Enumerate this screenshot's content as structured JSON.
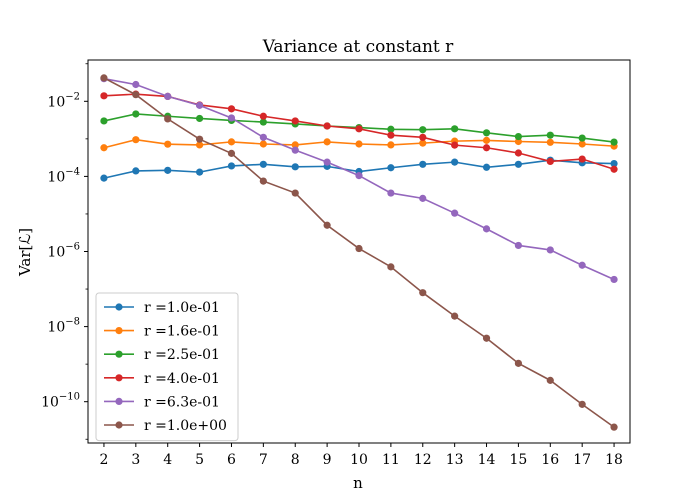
{
  "chart_data": {
    "type": "line",
    "title": "Variance at constant r",
    "xlabel": "n",
    "ylabel": "Var[ℒ]",
    "yscale": "log",
    "x": [
      2,
      3,
      4,
      5,
      6,
      7,
      8,
      9,
      10,
      11,
      12,
      13,
      14,
      15,
      16,
      17,
      18
    ],
    "xlim": [
      1.5,
      18.5
    ],
    "ylim_exp": [
      -11.1,
      -0.9
    ],
    "yticks": [
      {
        "exp": -2,
        "base": "10",
        "power": "−2"
      },
      {
        "exp": -4,
        "base": "10",
        "power": "−4"
      },
      {
        "exp": -6,
        "base": "10",
        "power": "−6"
      },
      {
        "exp": -8,
        "base": "10",
        "power": "−8"
      },
      {
        "exp": -10,
        "base": "10",
        "power": "−10"
      }
    ],
    "grid": false,
    "legend": {
      "position": "lower-left"
    },
    "series": [
      {
        "name": "r =1.0e-01",
        "color": "#1f77b4",
        "values": [
          9e-05,
          0.00014,
          0.000145,
          0.00013,
          0.00019,
          0.00021,
          0.00018,
          0.000185,
          0.000135,
          0.00017,
          0.00021,
          0.00024,
          0.000175,
          0.00021,
          0.00027,
          0.00023,
          0.00022
        ]
      },
      {
        "name": "r =1.6e-01",
        "color": "#ff7f0e",
        "values": [
          0.00058,
          0.00095,
          0.00072,
          0.00069,
          0.00083,
          0.00073,
          0.00069,
          0.00083,
          0.00073,
          0.00069,
          0.00077,
          0.00087,
          0.00091,
          0.00085,
          0.00081,
          0.00073,
          0.00064
        ]
      },
      {
        "name": "r =2.5e-01",
        "color": "#2ca02c",
        "values": [
          0.003,
          0.0046,
          0.004,
          0.0035,
          0.0031,
          0.0028,
          0.0025,
          0.0022,
          0.002,
          0.0018,
          0.00175,
          0.00185,
          0.00145,
          0.00115,
          0.00125,
          0.00105,
          0.00082
        ]
      },
      {
        "name": "r =4.0e-01",
        "color": "#d62728",
        "values": [
          0.014,
          0.0155,
          0.0135,
          0.008,
          0.0063,
          0.004,
          0.003,
          0.0022,
          0.00185,
          0.00125,
          0.0011,
          0.00068,
          0.00058,
          0.00042,
          0.00025,
          0.00029,
          0.000155
        ]
      },
      {
        "name": "r =6.3e-01",
        "color": "#9467bd",
        "values": [
          0.04,
          0.028,
          0.0135,
          0.0078,
          0.0036,
          0.0011,
          0.0005,
          0.00024,
          0.000105,
          3.6e-05,
          2.6e-05,
          1.05e-05,
          4e-06,
          1.45e-06,
          1.1e-06,
          4.3e-07,
          1.8e-07
        ]
      },
      {
        "name": "r =1.0e+00",
        "color": "#8c564b",
        "values": [
          0.042,
          0.015,
          0.0034,
          0.00098,
          0.00041,
          7.5e-05,
          3.6e-05,
          5e-06,
          1.2e-06,
          3.9e-07,
          8e-08,
          1.9e-08,
          4.9e-09,
          1.05e-09,
          3.7e-10,
          8.5e-11,
          2.1e-11
        ]
      }
    ]
  }
}
